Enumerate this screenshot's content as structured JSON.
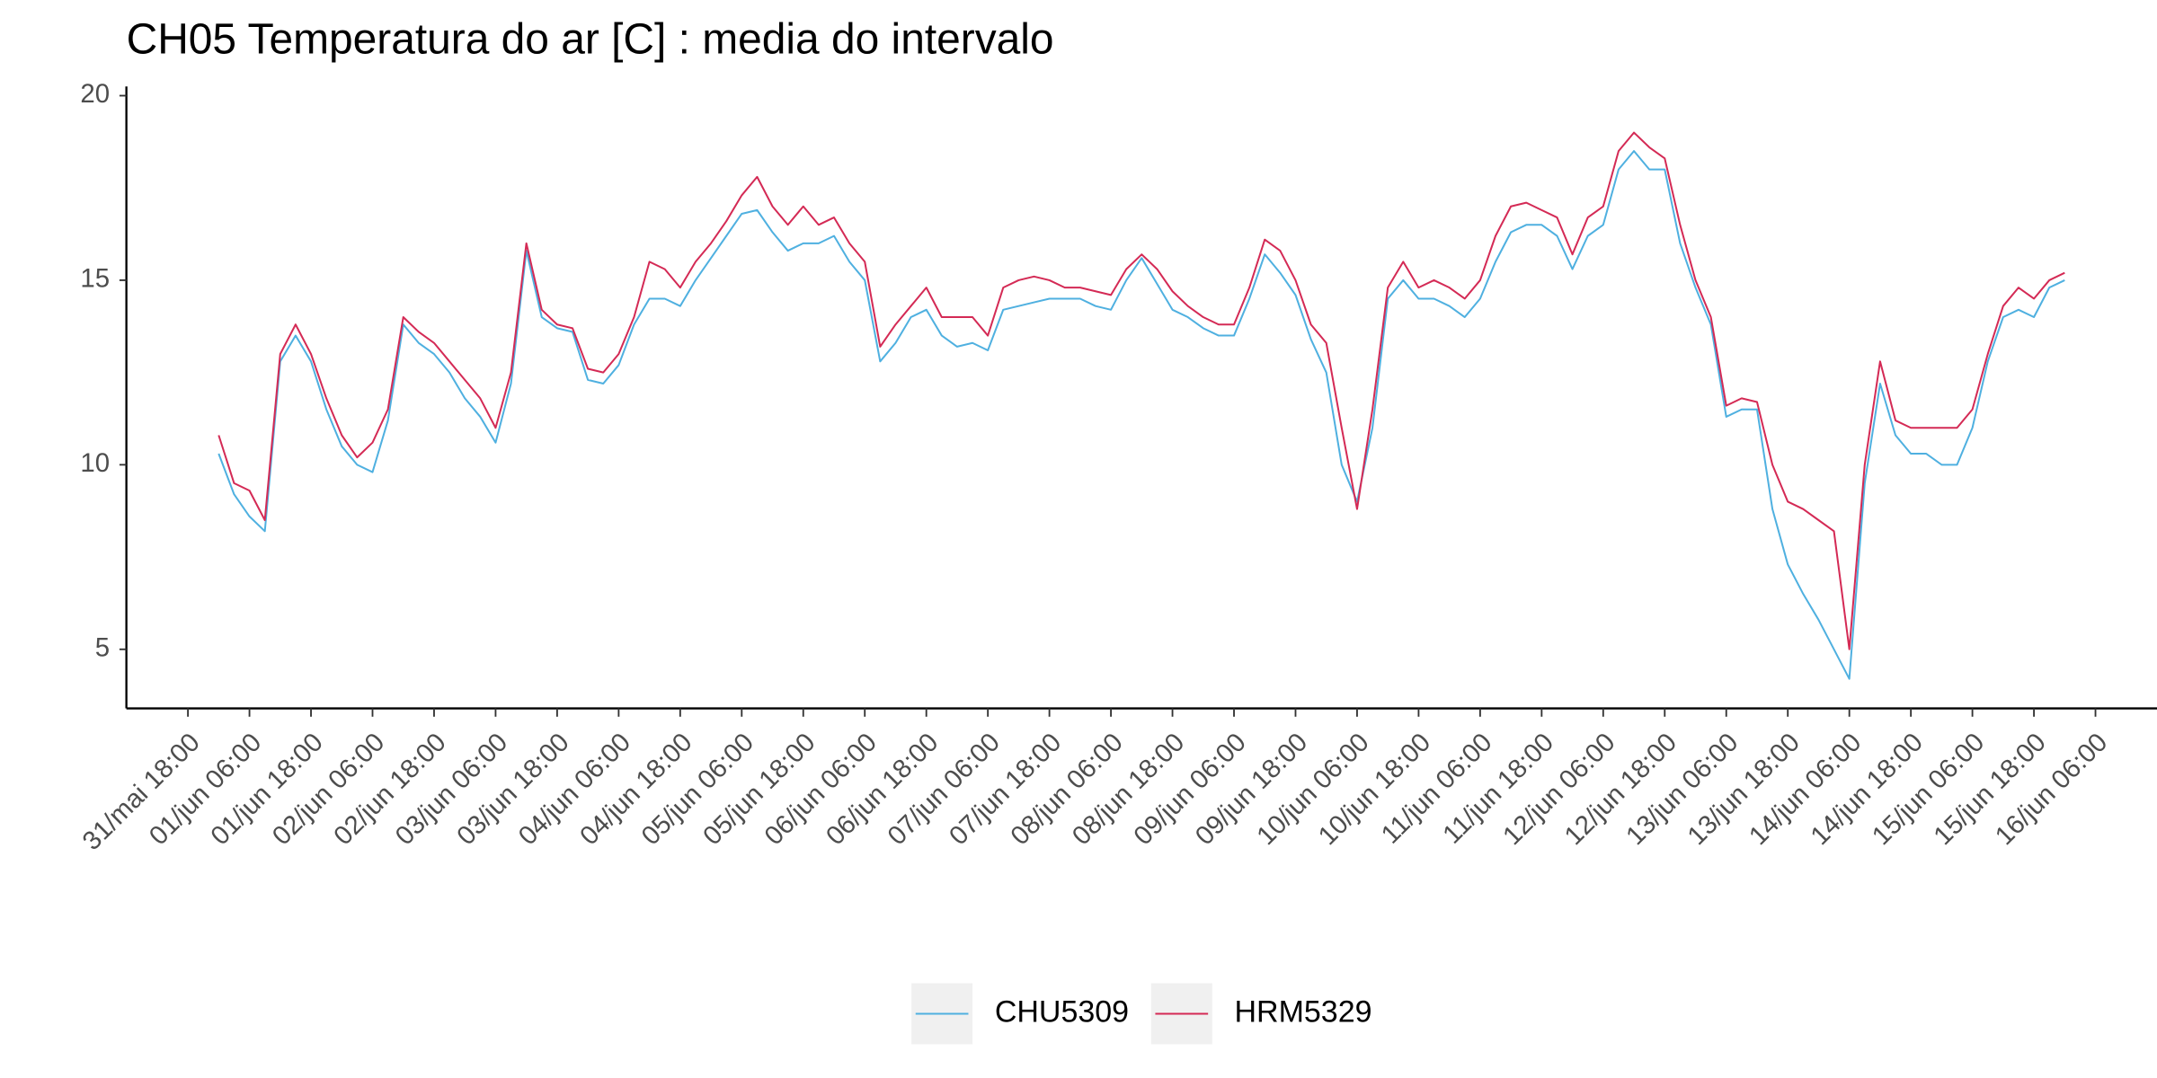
{
  "chart_data": {
    "type": "line",
    "title": "CH05 Temperatura do ar [C] : media do intervalo",
    "x": [
      "01/jun 00:00",
      "01/jun 03:00",
      "01/jun 06:00",
      "01/jun 09:00",
      "01/jun 12:00",
      "01/jun 15:00",
      "01/jun 18:00",
      "01/jun 21:00",
      "02/jun 00:00",
      "02/jun 03:00",
      "02/jun 06:00",
      "02/jun 09:00",
      "02/jun 12:00",
      "02/jun 15:00",
      "02/jun 18:00",
      "02/jun 21:00",
      "03/jun 00:00",
      "03/jun 03:00",
      "03/jun 06:00",
      "03/jun 09:00",
      "03/jun 12:00",
      "03/jun 15:00",
      "03/jun 18:00",
      "03/jun 21:00",
      "04/jun 00:00",
      "04/jun 03:00",
      "04/jun 06:00",
      "04/jun 09:00",
      "04/jun 12:00",
      "04/jun 15:00",
      "04/jun 18:00",
      "04/jun 21:00",
      "05/jun 00:00",
      "05/jun 03:00",
      "05/jun 06:00",
      "05/jun 09:00",
      "05/jun 12:00",
      "05/jun 15:00",
      "05/jun 18:00",
      "05/jun 21:00",
      "06/jun 00:00",
      "06/jun 03:00",
      "06/jun 06:00",
      "06/jun 09:00",
      "06/jun 12:00",
      "06/jun 15:00",
      "06/jun 18:00",
      "06/jun 21:00",
      "07/jun 00:00",
      "07/jun 03:00",
      "07/jun 06:00",
      "07/jun 09:00",
      "07/jun 12:00",
      "07/jun 15:00",
      "07/jun 18:00",
      "07/jun 21:00",
      "08/jun 00:00",
      "08/jun 03:00",
      "08/jun 06:00",
      "08/jun 09:00",
      "08/jun 12:00",
      "08/jun 15:00",
      "08/jun 18:00",
      "08/jun 21:00",
      "09/jun 00:00",
      "09/jun 03:00",
      "09/jun 06:00",
      "09/jun 09:00",
      "09/jun 12:00",
      "09/jun 15:00",
      "09/jun 18:00",
      "09/jun 21:00",
      "10/jun 00:00",
      "10/jun 03:00",
      "10/jun 06:00",
      "10/jun 09:00",
      "10/jun 12:00",
      "10/jun 15:00",
      "10/jun 18:00",
      "10/jun 21:00",
      "11/jun 00:00",
      "11/jun 03:00",
      "11/jun 06:00",
      "11/jun 09:00",
      "11/jun 12:00",
      "11/jun 15:00",
      "11/jun 18:00",
      "11/jun 21:00",
      "12/jun 00:00",
      "12/jun 03:00",
      "12/jun 06:00",
      "12/jun 09:00",
      "12/jun 12:00",
      "12/jun 15:00",
      "12/jun 18:00",
      "12/jun 21:00",
      "13/jun 00:00",
      "13/jun 03:00",
      "13/jun 06:00",
      "13/jun 09:00",
      "13/jun 12:00",
      "13/jun 15:00",
      "13/jun 18:00",
      "13/jun 21:00",
      "14/jun 00:00",
      "14/jun 03:00",
      "14/jun 06:00",
      "14/jun 09:00",
      "14/jun 12:00",
      "14/jun 15:00",
      "14/jun 18:00",
      "14/jun 21:00",
      "15/jun 00:00",
      "15/jun 03:00",
      "15/jun 06:00",
      "15/jun 09:00",
      "15/jun 12:00",
      "15/jun 15:00",
      "15/jun 18:00",
      "15/jun 21:00",
      "16/jun 00:00"
    ],
    "series": [
      {
        "name": "CHU5309",
        "color": "#4fb0e0",
        "values": [
          10.3,
          9.2,
          8.6,
          8.2,
          12.8,
          13.5,
          12.8,
          11.5,
          10.5,
          10.0,
          9.8,
          11.2,
          13.8,
          13.3,
          13.0,
          12.5,
          11.8,
          11.3,
          10.6,
          12.2,
          15.8,
          14.0,
          13.7,
          13.6,
          12.3,
          12.2,
          12.7,
          13.8,
          14.5,
          14.5,
          14.3,
          15.0,
          15.6,
          16.2,
          16.8,
          16.9,
          16.3,
          15.8,
          16.0,
          16.0,
          16.2,
          15.5,
          15.0,
          12.8,
          13.3,
          14.0,
          14.2,
          13.5,
          13.2,
          13.3,
          13.1,
          14.2,
          14.3,
          14.4,
          14.5,
          14.5,
          14.5,
          14.3,
          14.2,
          15.0,
          15.6,
          14.9,
          14.2,
          14.0,
          13.7,
          13.5,
          13.5,
          14.5,
          15.7,
          15.2,
          14.6,
          13.4,
          12.5,
          10.0,
          9.0,
          11.0,
          14.5,
          15.0,
          14.5,
          14.5,
          14.3,
          14.0,
          14.5,
          15.5,
          16.3,
          16.5,
          16.5,
          16.2,
          15.3,
          16.2,
          16.5,
          18.0,
          18.5,
          18.0,
          18.0,
          16.0,
          14.8,
          13.8,
          11.3,
          11.5,
          11.5,
          8.8,
          7.3,
          6.5,
          5.8,
          5.0,
          4.2,
          9.5,
          12.2,
          10.8,
          10.3,
          10.3,
          10.0,
          10.0,
          11.0,
          12.8,
          14.0,
          14.2,
          14.0,
          14.8,
          15.0
        ]
      },
      {
        "name": "HRM5329",
        "color": "#d42a55",
        "values": [
          10.8,
          9.5,
          9.3,
          8.5,
          13.0,
          13.8,
          13.0,
          11.8,
          10.8,
          10.2,
          10.6,
          11.5,
          14.0,
          13.6,
          13.3,
          12.8,
          12.3,
          11.8,
          11.0,
          12.5,
          16.0,
          14.2,
          13.8,
          13.7,
          12.6,
          12.5,
          13.0,
          14.0,
          15.5,
          15.3,
          14.8,
          15.5,
          16.0,
          16.6,
          17.3,
          17.8,
          17.0,
          16.5,
          17.0,
          16.5,
          16.7,
          16.0,
          15.5,
          13.2,
          13.8,
          14.3,
          14.8,
          14.0,
          14.0,
          14.0,
          13.5,
          14.8,
          15.0,
          15.1,
          15.0,
          14.8,
          14.8,
          14.7,
          14.6,
          15.3,
          15.7,
          15.3,
          14.7,
          14.3,
          14.0,
          13.8,
          13.8,
          14.8,
          16.1,
          15.8,
          15.0,
          13.8,
          13.3,
          11.0,
          8.8,
          11.5,
          14.8,
          15.5,
          14.8,
          15.0,
          14.8,
          14.5,
          15.0,
          16.2,
          17.0,
          17.1,
          16.9,
          16.7,
          15.7,
          16.7,
          17.0,
          18.5,
          19.0,
          18.6,
          18.3,
          16.5,
          15.0,
          14.0,
          11.6,
          11.8,
          11.7,
          10.0,
          9.0,
          8.8,
          8.5,
          8.2,
          5.0,
          10.0,
          12.8,
          11.2,
          11.0,
          11.0,
          11.0,
          11.0,
          11.5,
          13.0,
          14.3,
          14.8,
          14.5,
          15.0,
          15.2
        ]
      }
    ],
    "xlim": [
      "31/mai 06:00",
      "16/jun 18:00"
    ],
    "xticks": [
      "31/mai 18:00",
      "01/jun 06:00",
      "01/jun 18:00",
      "02/jun 06:00",
      "02/jun 18:00",
      "03/jun 06:00",
      "03/jun 18:00",
      "04/jun 06:00",
      "04/jun 18:00",
      "05/jun 06:00",
      "05/jun 18:00",
      "06/jun 06:00",
      "06/jun 18:00",
      "07/jun 06:00",
      "07/jun 18:00",
      "08/jun 06:00",
      "08/jun 18:00",
      "09/jun 06:00",
      "09/jun 18:00",
      "10/jun 06:00",
      "10/jun 18:00",
      "11/jun 06:00",
      "11/jun 18:00",
      "12/jun 06:00",
      "12/jun 18:00",
      "13/jun 06:00",
      "13/jun 18:00",
      "14/jun 06:00",
      "14/jun 18:00",
      "15/jun 06:00",
      "15/jun 18:00",
      "16/jun 06:00"
    ],
    "ylim": [
      3.4,
      20.1
    ],
    "yticks": [
      5,
      10,
      15,
      20
    ],
    "legend": "bottom"
  }
}
